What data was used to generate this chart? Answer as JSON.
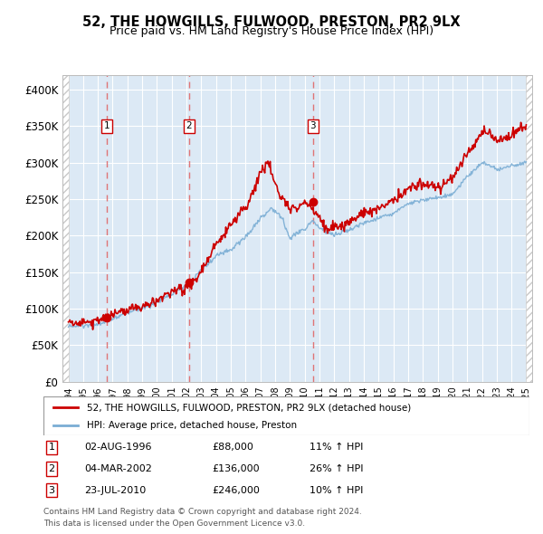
{
  "title": "52, THE HOWGILLS, FULWOOD, PRESTON, PR2 9LX",
  "subtitle": "Price paid vs. HM Land Registry's House Price Index (HPI)",
  "ylim": [
    0,
    420000
  ],
  "yticks": [
    0,
    50000,
    100000,
    150000,
    200000,
    250000,
    300000,
    350000,
    400000
  ],
  "ytick_labels": [
    "£0",
    "£50K",
    "£100K",
    "£150K",
    "£200K",
    "£250K",
    "£300K",
    "£350K",
    "£400K"
  ],
  "xlim_start": 1993.6,
  "xlim_end": 2025.4,
  "background_color": "#ffffff",
  "plot_bg_color": "#dce9f5",
  "grid_color": "#ffffff",
  "sale_dates": [
    1996.58,
    2002.17,
    2010.55
  ],
  "sale_prices": [
    88000,
    136000,
    246000
  ],
  "sale_labels": [
    "1",
    "2",
    "3"
  ],
  "sale_label_info": [
    {
      "num": "1",
      "date": "02-AUG-1996",
      "price": "£88,000",
      "hpi": "11% ↑ HPI"
    },
    {
      "num": "2",
      "date": "04-MAR-2002",
      "price": "£136,000",
      "hpi": "26% ↑ HPI"
    },
    {
      "num": "3",
      "date": "23-JUL-2010",
      "price": "£246,000",
      "hpi": "10% ↑ HPI"
    }
  ],
  "legend_line1": "52, THE HOWGILLS, FULWOOD, PRESTON, PR2 9LX (detached house)",
  "legend_line2": "HPI: Average price, detached house, Preston",
  "footnote1": "Contains HM Land Registry data © Crown copyright and database right 2024.",
  "footnote2": "This data is licensed under the Open Government Licence v3.0.",
  "red_line_color": "#cc0000",
  "blue_line_color": "#7aadd4",
  "marker_color": "#cc0000",
  "dashed_line_color": "#e06060",
  "hatch_color": "#c8c8c8"
}
